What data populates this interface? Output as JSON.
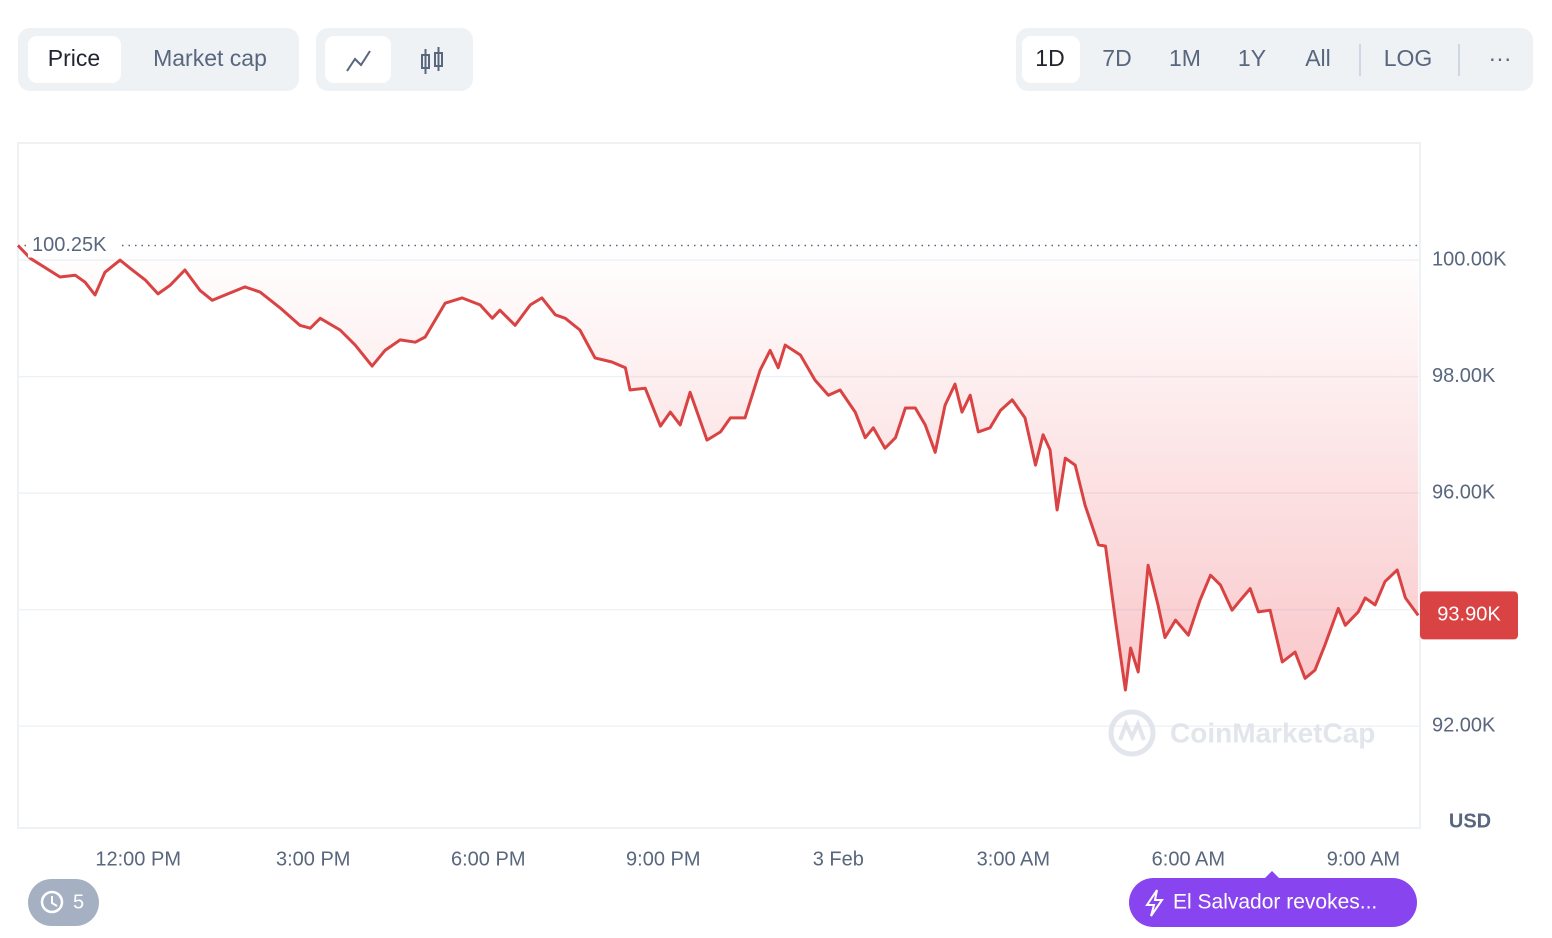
{
  "toolbar": {
    "view_tabs": [
      "Price",
      "Market cap"
    ],
    "ranges": [
      "1D",
      "7D",
      "1M",
      "1Y",
      "All"
    ],
    "scale_button": "LOG",
    "more": "···"
  },
  "chart_data": {
    "type": "line",
    "color": "#d94343",
    "x": [
      9.94,
      10.15,
      10.66,
      10.92,
      11.09,
      11.26,
      11.43,
      11.69,
      11.86,
      12.12,
      12.34,
      12.55,
      12.8,
      13.06,
      13.27,
      13.49,
      13.83,
      14.09,
      14.43,
      14.77,
      14.95,
      15.12,
      15.46,
      15.72,
      16.01,
      16.23,
      16.49,
      16.75,
      16.92,
      17.26,
      17.55,
      17.86,
      18.07,
      18.2,
      18.46,
      18.72,
      18.92,
      19.15,
      19.32,
      19.57,
      19.83,
      20.12,
      20.35,
      20.43,
      20.69,
      20.95,
      21.12,
      21.29,
      21.46,
      21.63,
      21.75,
      21.98,
      22.15,
      22.4,
      22.66,
      22.83,
      22.97,
      23.09,
      23.35,
      23.6,
      23.83,
      24.03,
      24.29,
      24.46,
      24.6,
      24.8,
      24.98,
      25.15,
      25.32,
      25.49,
      25.66,
      25.83,
      26.0,
      26.12,
      26.26,
      26.4,
      26.6,
      26.78,
      26.98,
      27.2,
      27.38,
      27.51,
      27.63,
      27.75,
      27.89,
      28.06,
      28.23,
      28.46,
      28.58,
      28.75,
      28.92,
      29.01,
      29.14,
      29.31,
      29.48,
      29.6,
      29.78,
      30.0,
      30.2,
      30.38,
      30.55,
      30.75,
      30.89,
      31.06,
      31.2,
      31.4,
      31.61,
      31.83,
      32.0,
      32.17,
      32.34,
      32.57,
      32.69,
      32.91,
      33.03,
      33.2,
      33.37,
      33.58,
      33.72,
      33.94
    ],
    "values": [
      100250,
      100030,
      99710,
      99740,
      99620,
      99400,
      99790,
      100000,
      99860,
      99660,
      99420,
      99570,
      99830,
      99480,
      99310,
      99400,
      99540,
      99450,
      99180,
      98880,
      98830,
      99000,
      98800,
      98540,
      98180,
      98450,
      98630,
      98590,
      98680,
      99260,
      99350,
      99230,
      99000,
      99140,
      98880,
      99230,
      99350,
      99060,
      99000,
      98800,
      98320,
      98250,
      98150,
      97770,
      97800,
      97150,
      97390,
      97170,
      97730,
      97250,
      96910,
      97050,
      97290,
      97290,
      98110,
      98450,
      98150,
      98540,
      98370,
      97940,
      97680,
      97770,
      97390,
      96950,
      97120,
      96770,
      96950,
      97460,
      97460,
      97170,
      96700,
      97510,
      97870,
      97390,
      97680,
      97050,
      97120,
      97420,
      97600,
      97290,
      96480,
      97000,
      96740,
      95710,
      96600,
      96480,
      95790,
      95110,
      95090,
      93820,
      92620,
      93340,
      92930,
      94760,
      94080,
      93520,
      93820,
      93560,
      94160,
      94590,
      94420,
      93990,
      94160,
      94360,
      93960,
      93990,
      93100,
      93270,
      92820,
      92960,
      93390,
      94020,
      93730,
      93960,
      94200,
      94080,
      94480,
      94680,
      94200,
      93900
    ],
    "ylim": [
      90250,
      102010
    ],
    "yticks": [
      {
        "value": 92000,
        "label": "92.00K"
      },
      {
        "value": 94000,
        "label": "94.00K"
      },
      {
        "value": 96000,
        "label": "96.00K"
      },
      {
        "value": 98000,
        "label": "98.00K"
      },
      {
        "value": 100000,
        "label": "100.00K"
      }
    ],
    "xlim": [
      9.94,
      33.97
    ],
    "xticks": [
      {
        "value": 12,
        "label": "12:00 PM"
      },
      {
        "value": 15,
        "label": "3:00 PM"
      },
      {
        "value": 18,
        "label": "6:00 PM"
      },
      {
        "value": 21,
        "label": "9:00 PM"
      },
      {
        "value": 24,
        "label": "3 Feb"
      },
      {
        "value": 27,
        "label": "3:00 AM"
      },
      {
        "value": 30,
        "label": "6:00 AM"
      },
      {
        "value": 33,
        "label": "9:00 AM"
      }
    ],
    "open_price": {
      "value": 100250,
      "label": "100.25K"
    },
    "current_price": {
      "value": 93900,
      "label": "93.90K"
    },
    "ylabel": "USD",
    "grid": true
  },
  "watermark": "CoinMarketCap",
  "history_badge": "5",
  "news": "El Salvador revokes..."
}
